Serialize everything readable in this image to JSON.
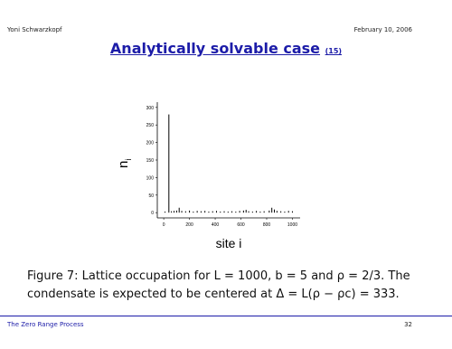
{
  "header": {
    "author": "Yoni Schwarzkopf",
    "date": "February 10, 2006"
  },
  "title": {
    "text": "Analytically solvable case",
    "ref": "(15)"
  },
  "chart_data": {
    "type": "bar",
    "y_label": "n",
    "y_label_sub": "i",
    "x_label": "site i",
    "x": [
      10,
      40,
      60,
      80,
      100,
      120,
      140,
      170,
      200,
      230,
      260,
      290,
      320,
      350,
      380,
      410,
      440,
      470,
      500,
      530,
      560,
      590,
      620,
      640,
      660,
      690,
      720,
      750,
      780,
      820,
      840,
      860,
      880,
      910,
      940,
      970,
      1000
    ],
    "values": [
      3,
      280,
      4,
      5,
      6,
      14,
      5,
      4,
      6,
      3,
      5,
      4,
      5,
      3,
      4,
      5,
      3,
      4,
      3,
      4,
      3,
      5,
      6,
      8,
      4,
      3,
      5,
      3,
      4,
      6,
      14,
      9,
      5,
      4,
      3,
      5,
      4
    ],
    "color": "#000000",
    "xlim": [
      -50,
      1060
    ],
    "ylim": [
      -15,
      315
    ],
    "xticks": [
      0,
      200,
      400,
      600,
      800,
      1000
    ],
    "yticks": [
      0,
      50,
      100,
      150,
      200,
      250,
      300
    ]
  },
  "caption": "Figure 7: Lattice occupation for L = 1000, b = 5 and ρ = 2/3. The condensate is expected to be centered at Δ = L(ρ − ρc) = 333.",
  "footer": {
    "left": "The Zero Range Process",
    "page": "32"
  }
}
